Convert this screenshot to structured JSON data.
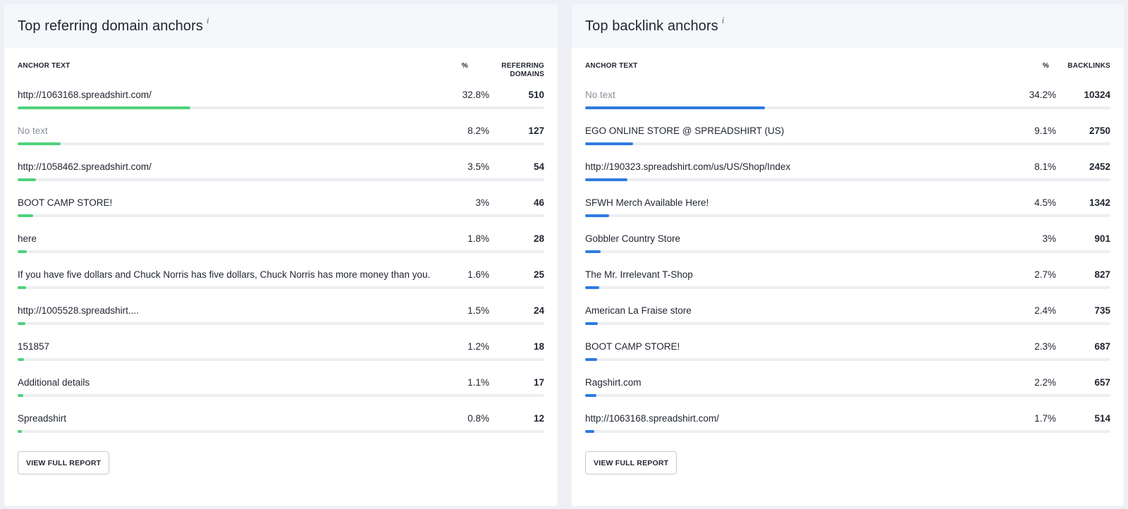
{
  "left_panel": {
    "title": "Top referring domain anchors",
    "info_icon": "i",
    "columns": {
      "anchor": "ANCHOR TEXT",
      "pct": "%",
      "value_line1": "REFERRING",
      "value_line2": "DOMAINS"
    },
    "bar_color": "#4fd27b",
    "rows": [
      {
        "anchor": "http://1063168.spreadshirt.com/",
        "pct": "32.8%",
        "value": "510",
        "muted": false,
        "share": 0.328
      },
      {
        "anchor": "No text",
        "pct": "8.2%",
        "value": "127",
        "muted": true,
        "share": 0.082
      },
      {
        "anchor": "http://1058462.spreadshirt.com/",
        "pct": "3.5%",
        "value": "54",
        "muted": false,
        "share": 0.035
      },
      {
        "anchor": "BOOT CAMP STORE!",
        "pct": "3%",
        "value": "46",
        "muted": false,
        "share": 0.03
      },
      {
        "anchor": "here",
        "pct": "1.8%",
        "value": "28",
        "muted": false,
        "share": 0.018
      },
      {
        "anchor": "If you have five dollars and Chuck Norris has five dollars, Chuck Norris has more money than you.",
        "pct": "1.6%",
        "value": "25",
        "muted": false,
        "share": 0.016
      },
      {
        "anchor": "http://1005528.spreadshirt....",
        "pct": "1.5%",
        "value": "24",
        "muted": false,
        "share": 0.015
      },
      {
        "anchor": "151857",
        "pct": "1.2%",
        "value": "18",
        "muted": false,
        "share": 0.012
      },
      {
        "anchor": "Additional details",
        "pct": "1.1%",
        "value": "17",
        "muted": false,
        "share": 0.011
      },
      {
        "anchor": "Spreadshirt",
        "pct": "0.8%",
        "value": "12",
        "muted": false,
        "share": 0.008
      }
    ],
    "button": "VIEW FULL REPORT"
  },
  "right_panel": {
    "title": "Top backlink anchors",
    "info_icon": "i",
    "columns": {
      "anchor": "ANCHOR TEXT",
      "pct": "%",
      "value_line1": "BACKLINKS",
      "value_line2": ""
    },
    "bar_color": "#2f7be0",
    "rows": [
      {
        "anchor": "No text",
        "pct": "34.2%",
        "value": "10324",
        "muted": true,
        "share": 0.342
      },
      {
        "anchor": "EGO ONLINE STORE @ SPREADSHIRT (US)",
        "pct": "9.1%",
        "value": "2750",
        "muted": false,
        "share": 0.091
      },
      {
        "anchor": "http://190323.spreadshirt.com/us/US/Shop/Index",
        "pct": "8.1%",
        "value": "2452",
        "muted": false,
        "share": 0.081
      },
      {
        "anchor": "SFWH Merch Available Here!",
        "pct": "4.5%",
        "value": "1342",
        "muted": false,
        "share": 0.045
      },
      {
        "anchor": "Gobbler Country Store",
        "pct": "3%",
        "value": "901",
        "muted": false,
        "share": 0.03
      },
      {
        "anchor": "The Mr. Irrelevant T-Shop",
        "pct": "2.7%",
        "value": "827",
        "muted": false,
        "share": 0.027
      },
      {
        "anchor": "American La Fraise store",
        "pct": "2.4%",
        "value": "735",
        "muted": false,
        "share": 0.024
      },
      {
        "anchor": "BOOT CAMP STORE!",
        "pct": "2.3%",
        "value": "687",
        "muted": false,
        "share": 0.023
      },
      {
        "anchor": "Ragshirt.com",
        "pct": "2.2%",
        "value": "657",
        "muted": false,
        "share": 0.022
      },
      {
        "anchor": "http://1063168.spreadshirt.com/",
        "pct": "1.7%",
        "value": "514",
        "muted": false,
        "share": 0.017
      }
    ],
    "button": "VIEW FULL REPORT"
  }
}
